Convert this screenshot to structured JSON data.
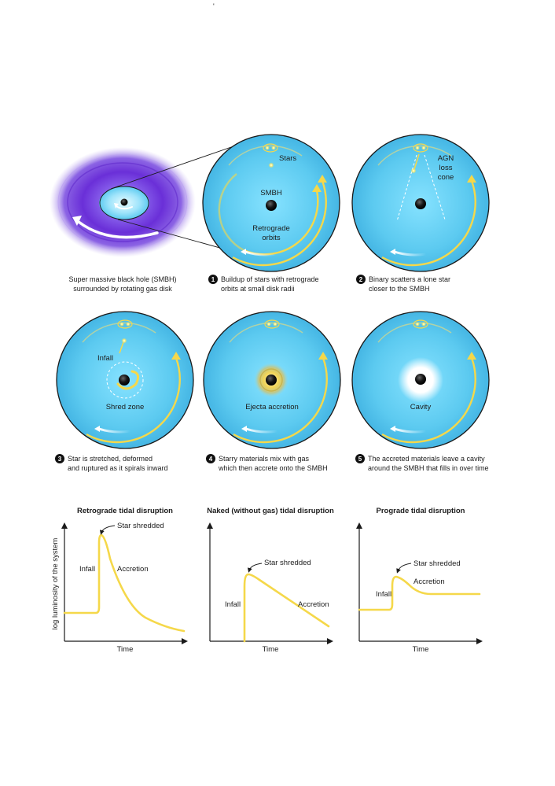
{
  "top_mark": "'",
  "captions": {
    "disk": [
      "Super massive black hole (SMBH)",
      "surrounded by rotating gas disk"
    ],
    "step1": [
      "Buildup of stars with retrograde",
      "orbits at small disk radii"
    ],
    "step2": [
      "Binary scatters a lone star",
      "closer to the SMBH"
    ],
    "step3": [
      "Star is stretched, deformed",
      "and ruptured as it spirals inward"
    ],
    "step4": [
      "Starry materials mix with gas",
      "which then accrete onto the SMBH"
    ],
    "step5": [
      "The accreted materials leave a cavity",
      "around the SMBH that fills in over time"
    ]
  },
  "step_numbers": [
    "1",
    "2",
    "3",
    "4",
    "5"
  ],
  "labels": {
    "stars": "Stars",
    "smbh": "SMBH",
    "retrograde_orbits": [
      "Retrograde",
      "orbits"
    ],
    "agn_loss_cone": [
      "AGN",
      "loss",
      "cone"
    ],
    "infall": "Infall",
    "shred_zone": "Shred zone",
    "ejecta_accretion": "Ejecta accretion",
    "cavity": "Cavity"
  },
  "plots": {
    "retrograde": {
      "title": "Retrograde tidal disruption",
      "ylabel": "log luminosity of the system",
      "xlabel": "Time",
      "star_shredded": "Star shredded",
      "infall": "Infall",
      "accretion": "Accretion"
    },
    "naked": {
      "title": "Naked (without gas) tidal disruption",
      "xlabel": "Time",
      "star_shredded": "Star shredded",
      "infall": "Infall",
      "accretion": "Accretion"
    },
    "prograde": {
      "title": "Prograde tidal disruption",
      "xlabel": "Time",
      "star_shredded": "Star shredded",
      "infall": "Infall",
      "accretion": "Accretion"
    }
  },
  "colors": {
    "disk_blue": "#5ccaf0",
    "disk_edge": "#1a1a1a",
    "orbit_yellow": "#f5d84a",
    "gas_purple": "#7a46e0",
    "black_hole": "#111111"
  }
}
